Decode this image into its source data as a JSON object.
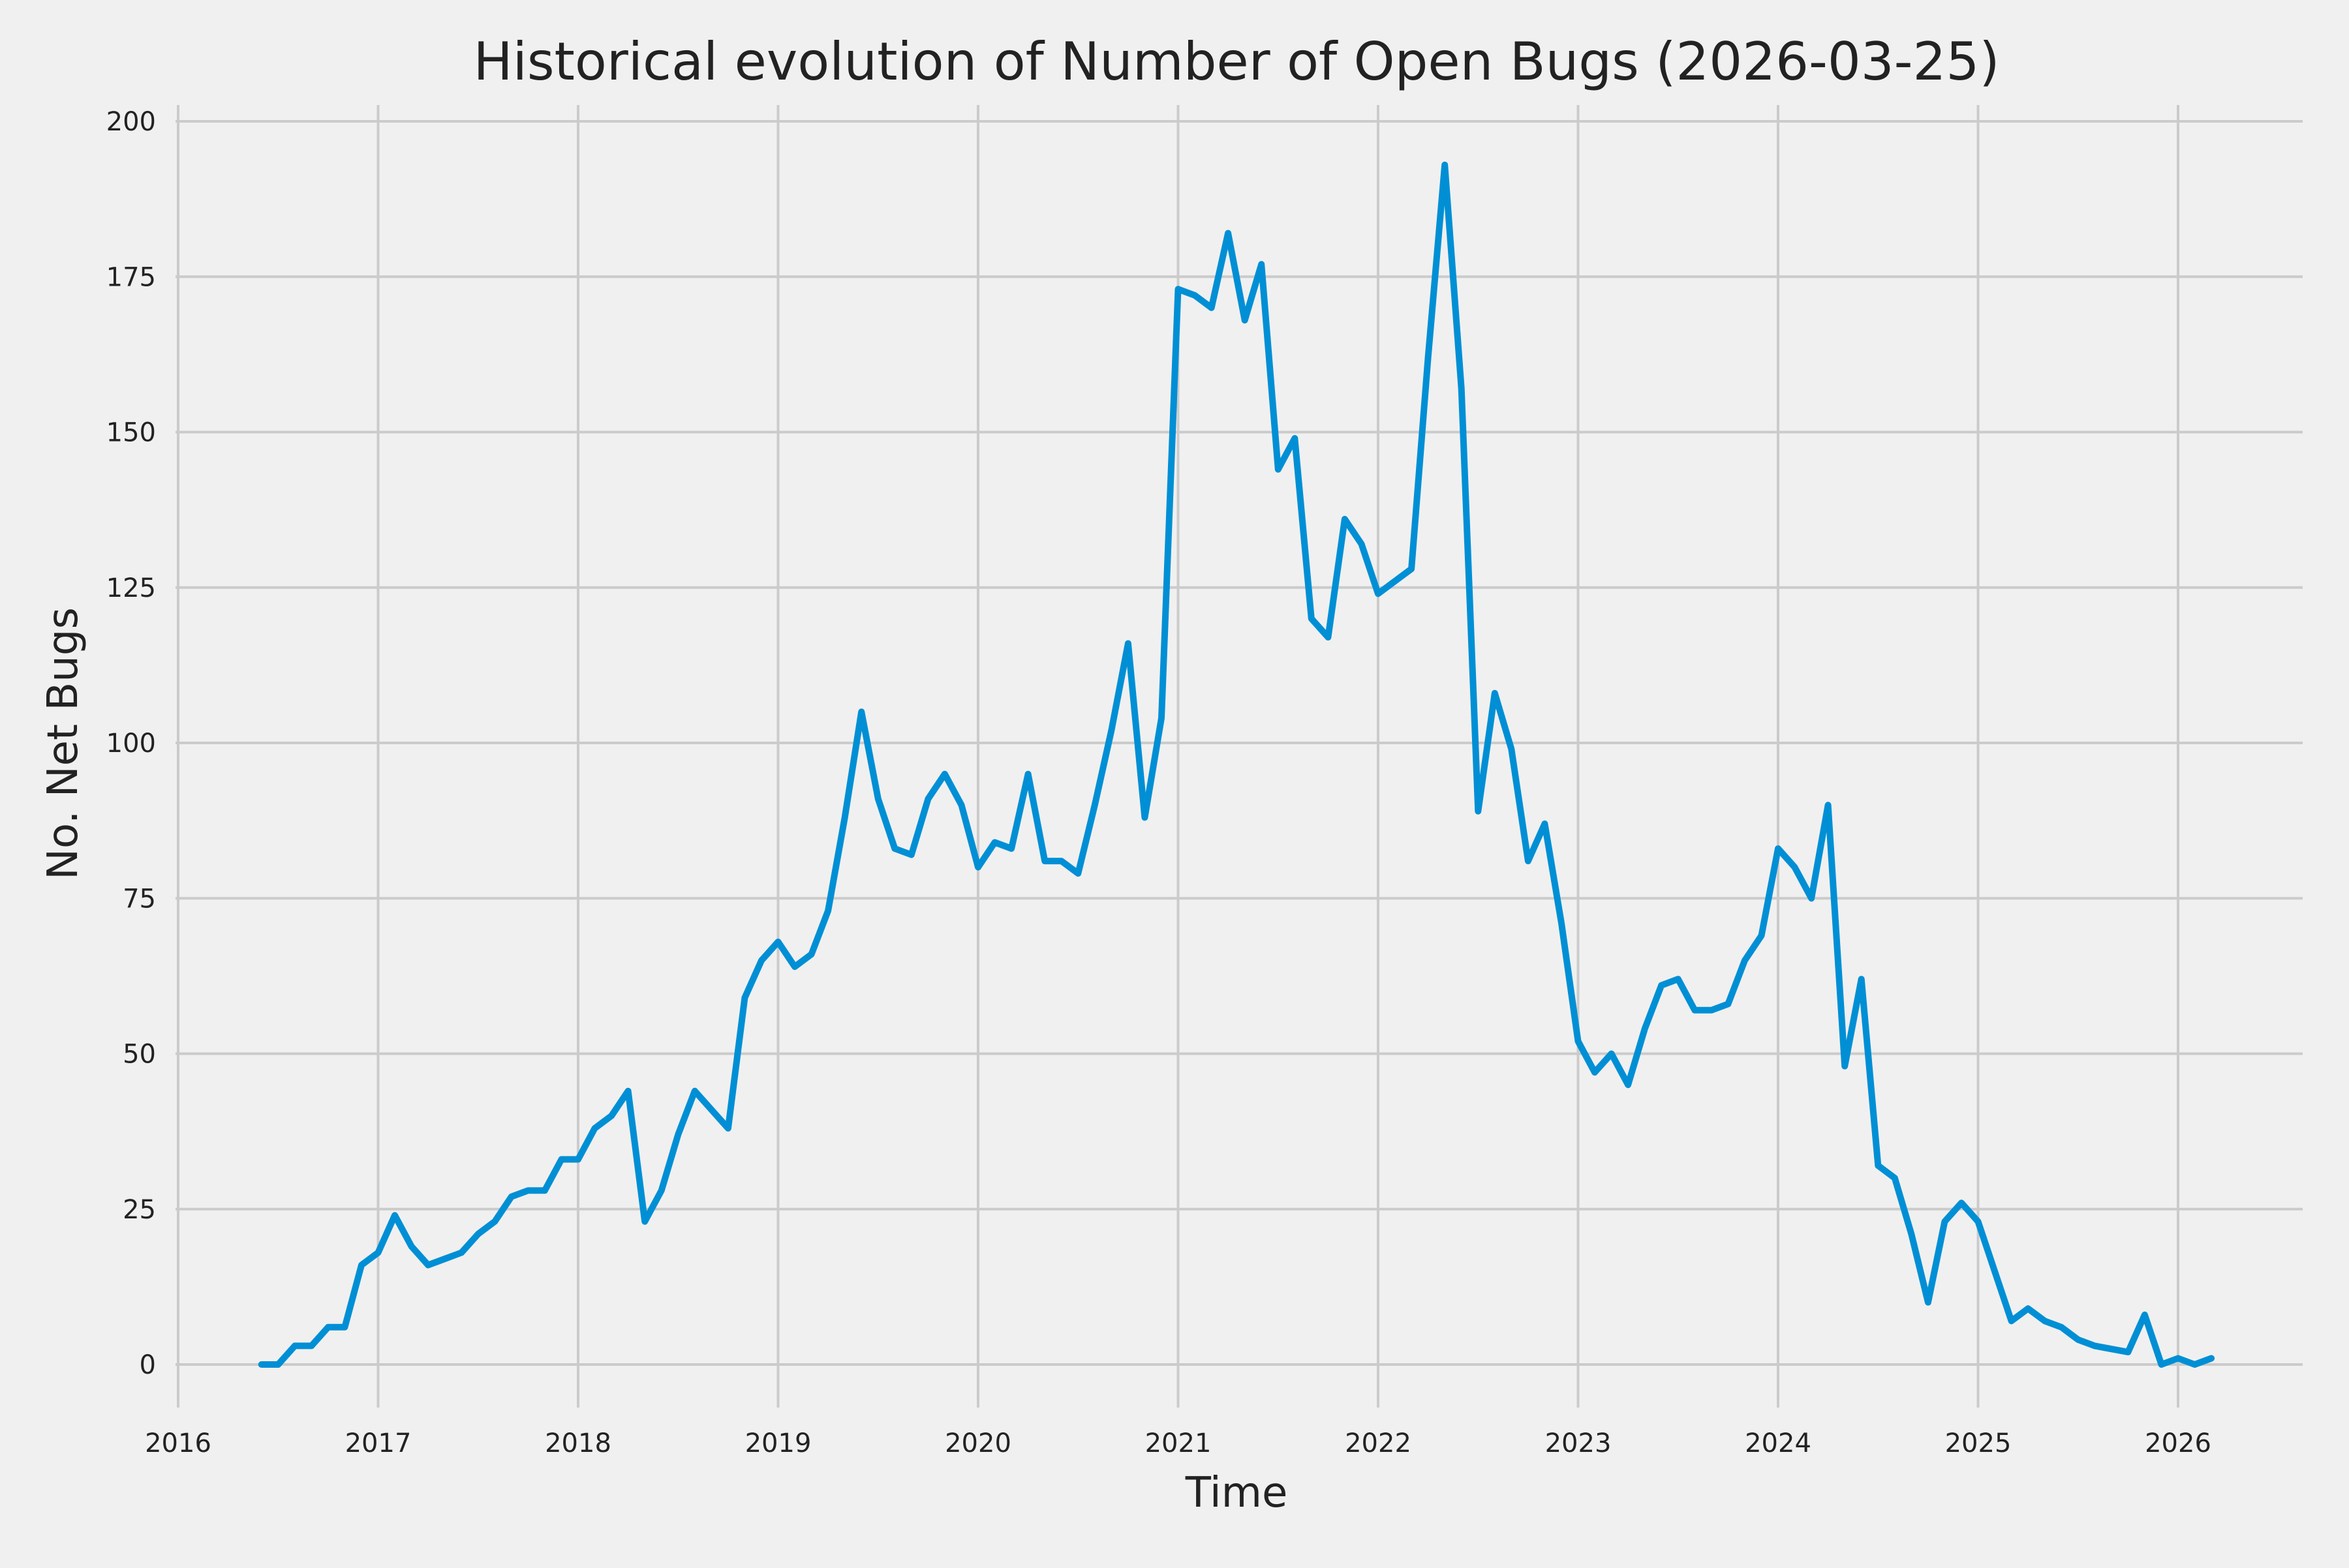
{
  "chart_data": {
    "type": "line",
    "title": "Historical evolution of Number of Open Bugs (2026-03-25)",
    "xlabel": "Time",
    "ylabel": "No. Net Bugs",
    "xlim": [
      2015.9,
      2026.65
    ],
    "ylim": [
      -8,
      207
    ],
    "x_ticks": [
      "2016",
      "2017",
      "2018",
      "2019",
      "2020",
      "2021",
      "2022",
      "2023",
      "2024",
      "2025",
      "2026"
    ],
    "y_ticks": [
      0,
      25,
      50,
      75,
      100,
      125,
      150,
      175,
      200
    ],
    "grid": true,
    "start_month": "2016-06",
    "frequency": "monthly",
    "line_color": "#008fd5",
    "background": "#f0f0f0",
    "values": [
      0,
      0,
      3,
      3,
      6,
      6,
      16,
      18,
      24,
      19,
      16,
      17,
      18,
      21,
      23,
      27,
      28,
      28,
      33,
      33,
      38,
      40,
      44,
      23,
      28,
      37,
      44,
      41,
      38,
      59,
      65,
      68,
      64,
      66,
      73,
      88,
      105,
      91,
      83,
      82,
      91,
      95,
      90,
      80,
      84,
      83,
      95,
      81,
      81,
      79,
      90,
      102,
      116,
      88,
      104,
      173,
      172,
      170,
      182,
      168,
      177,
      144,
      149,
      120,
      117,
      136,
      132,
      124,
      126,
      128,
      162,
      193,
      157,
      89,
      108,
      99,
      81,
      87,
      71,
      52,
      47,
      50,
      45,
      54,
      61,
      62,
      57,
      57,
      58,
      65,
      69,
      83,
      80,
      75,
      90,
      48,
      62,
      32,
      30,
      21,
      10,
      23,
      26,
      23,
      15,
      7,
      9,
      7,
      6,
      4,
      3,
      2.5,
      2,
      8,
      0,
      1,
      0,
      1
    ]
  }
}
